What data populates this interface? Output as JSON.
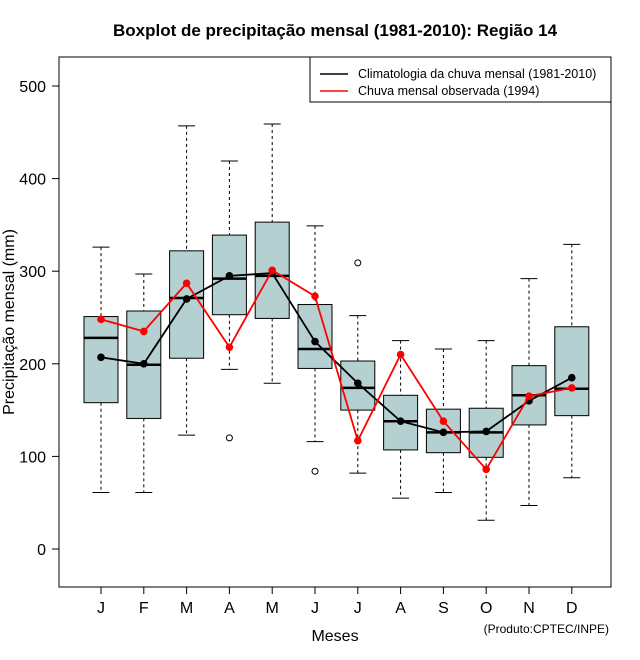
{
  "chart_data": {
    "type": "boxplot",
    "title": "Boxplot de precipitação mensal (1981-2010): Região 14",
    "xlabel": "Meses",
    "ylabel": "Precipitação mensal (mm)",
    "ylim": [
      -40,
      530
    ],
    "yticks": [
      0,
      100,
      200,
      300,
      400,
      500
    ],
    "categories": [
      "J",
      "F",
      "M",
      "A",
      "M",
      "J",
      "J",
      "A",
      "S",
      "O",
      "N",
      "D"
    ],
    "boxes": [
      {
        "min": 61,
        "q1": 158,
        "median": 228,
        "q3": 251,
        "max": 326,
        "outliers": []
      },
      {
        "min": 61,
        "q1": 141,
        "median": 199,
        "q3": 257,
        "max": 297,
        "outliers": []
      },
      {
        "min": 123,
        "q1": 206,
        "median": 271,
        "q3": 322,
        "max": 457,
        "outliers": []
      },
      {
        "min": 194,
        "q1": 253,
        "median": 292,
        "q3": 339,
        "max": 419,
        "outliers": [
          120
        ]
      },
      {
        "min": 179,
        "q1": 249,
        "median": 295,
        "q3": 353,
        "max": 459,
        "outliers": []
      },
      {
        "min": 116,
        "q1": 195,
        "median": 216,
        "q3": 264,
        "max": 349,
        "outliers": [
          84
        ]
      },
      {
        "min": 82,
        "q1": 150,
        "median": 174,
        "q3": 203,
        "max": 252,
        "outliers": [
          309
        ]
      },
      {
        "min": 55,
        "q1": 107,
        "median": 138,
        "q3": 166,
        "max": 225,
        "outliers": []
      },
      {
        "min": 61,
        "q1": 104,
        "median": 126,
        "q3": 151,
        "max": 216,
        "outliers": []
      },
      {
        "min": 31,
        "q1": 99,
        "median": 126,
        "q3": 152,
        "max": 225,
        "outliers": []
      },
      {
        "min": 47,
        "q1": 134,
        "median": 166,
        "q3": 198,
        "max": 292,
        "outliers": []
      },
      {
        "min": 77,
        "q1": 144,
        "median": 173,
        "q3": 240,
        "max": 329,
        "outliers": []
      }
    ],
    "series": [
      {
        "name": "Climatologia da chuva mensal (1981-2010)",
        "color": "#000000",
        "values": [
          207,
          200,
          270,
          295,
          298,
          224,
          179,
          138,
          126,
          127,
          160,
          185
        ]
      },
      {
        "name": "Chuva mensal observada (1994)",
        "color": "#ff0000",
        "values": [
          248,
          235,
          287,
          218,
          301,
          273,
          117,
          210,
          138,
          86,
          165,
          174
        ]
      }
    ],
    "legend_position": "top-right",
    "box_fill": "#b4d0d0",
    "credit": "(Produto:CPTEC/INPE)"
  }
}
